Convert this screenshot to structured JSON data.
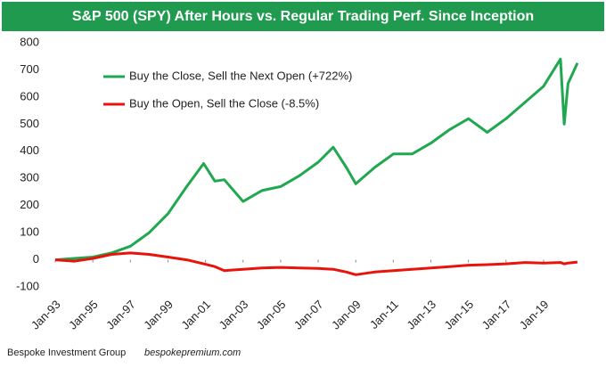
{
  "chart_data": {
    "type": "line",
    "title": "S&P 500 (SPY) After Hours vs. Regular Trading Perf. Since Inception",
    "source": "Bespoke Investment Group",
    "website": "bespokepremium.com",
    "x": [
      1993,
      1994,
      1995,
      1996,
      1997,
      1998,
      1999,
      2000,
      2000.9,
      2001.5,
      2002,
      2003,
      2004,
      2005,
      2006,
      2007,
      2007.8,
      2008.5,
      2009,
      2010,
      2011,
      2012,
      2013,
      2014,
      2015,
      2016,
      2017,
      2018,
      2019,
      2019.9,
      2020.1,
      2020.3,
      2020.8
    ],
    "series": [
      {
        "name": "Buy the Close, Sell the Next Open (+722%)",
        "color": "#1fa84f",
        "values": [
          0,
          5,
          10,
          25,
          50,
          100,
          170,
          270,
          355,
          290,
          295,
          215,
          255,
          270,
          310,
          360,
          415,
          340,
          280,
          340,
          390,
          390,
          430,
          480,
          520,
          470,
          520,
          580,
          640,
          740,
          500,
          650,
          725
        ]
      },
      {
        "name": "Buy the Open, Sell the Close (-8.5%)",
        "color": "#e8140c",
        "values": [
          0,
          -5,
          5,
          20,
          25,
          20,
          10,
          0,
          -15,
          -25,
          -40,
          -35,
          -30,
          -28,
          -30,
          -32,
          -35,
          -45,
          -55,
          -45,
          -40,
          -35,
          -30,
          -25,
          -20,
          -18,
          -15,
          -10,
          -12,
          -10,
          -15,
          -12,
          -8.5
        ]
      }
    ],
    "xlim": [
      1993,
      2020.9
    ],
    "xticks": [
      {
        "value": 1993,
        "label": "Jan-93"
      },
      {
        "value": 1995,
        "label": "Jan-95"
      },
      {
        "value": 1997,
        "label": "Jan-97"
      },
      {
        "value": 1999,
        "label": "Jan-99"
      },
      {
        "value": 2001,
        "label": "Jan-01"
      },
      {
        "value": 2003,
        "label": "Jan-03"
      },
      {
        "value": 2005,
        "label": "Jan-05"
      },
      {
        "value": 2007,
        "label": "Jan-07"
      },
      {
        "value": 2009,
        "label": "Jan-09"
      },
      {
        "value": 2011,
        "label": "Jan-11"
      },
      {
        "value": 2013,
        "label": "Jan-13"
      },
      {
        "value": 2015,
        "label": "Jan-15"
      },
      {
        "value": 2017,
        "label": "Jan-17"
      },
      {
        "value": 2019,
        "label": "Jan-19"
      }
    ],
    "ylim": [
      -100,
      800
    ],
    "yticks": [
      -100,
      0,
      100,
      200,
      300,
      400,
      500,
      600,
      700,
      800
    ],
    "grid": false,
    "legend": "upper left"
  }
}
